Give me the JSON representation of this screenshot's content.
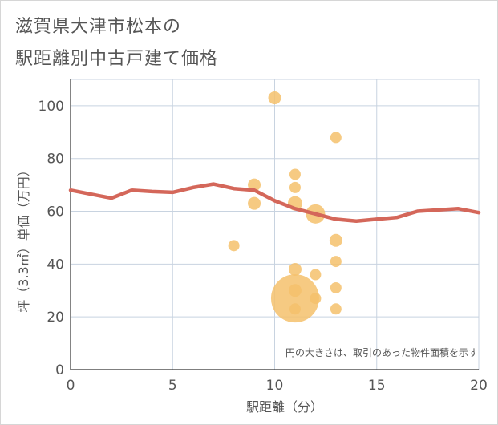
{
  "title_lines": [
    "滋賀県大津市松本の",
    "駅距離別中古戸建て価格"
  ],
  "chart_data": {
    "type": "scatter",
    "xlabel": "駅距離（分）",
    "ylabel": "坪（3.3㎡）単価（万円）",
    "xlim": [
      0,
      20
    ],
    "ylim": [
      0,
      110
    ],
    "x_ticks": [
      0,
      5,
      10,
      15,
      20
    ],
    "y_ticks": [
      0,
      20,
      40,
      60,
      80,
      100
    ],
    "note": "円の大きさは、取引のあった物件面積を示す",
    "colors": {
      "points": "#f5c16c",
      "line": "#d4675a",
      "grid": "#c8d3e0"
    },
    "points": [
      {
        "x": 8,
        "y": 47,
        "r": 7
      },
      {
        "x": 9,
        "y": 70,
        "r": 8
      },
      {
        "x": 9,
        "y": 63,
        "r": 8
      },
      {
        "x": 10,
        "y": 103,
        "r": 8
      },
      {
        "x": 11,
        "y": 74,
        "r": 7
      },
      {
        "x": 11,
        "y": 69,
        "r": 7
      },
      {
        "x": 11,
        "y": 63,
        "r": 9
      },
      {
        "x": 11,
        "y": 38,
        "r": 8
      },
      {
        "x": 11,
        "y": 30,
        "r": 8
      },
      {
        "x": 11,
        "y": 27,
        "r": 30
      },
      {
        "x": 11,
        "y": 23,
        "r": 7
      },
      {
        "x": 12,
        "y": 59,
        "r": 12
      },
      {
        "x": 12,
        "y": 36,
        "r": 7
      },
      {
        "x": 12,
        "y": 27,
        "r": 7
      },
      {
        "x": 13,
        "y": 88,
        "r": 7
      },
      {
        "x": 13,
        "y": 49,
        "r": 8
      },
      {
        "x": 13,
        "y": 41,
        "r": 7
      },
      {
        "x": 13,
        "y": 31,
        "r": 7
      },
      {
        "x": 13,
        "y": 23,
        "r": 7
      }
    ],
    "line": {
      "x": [
        0,
        1,
        2,
        3,
        4,
        5,
        6,
        7,
        8,
        9,
        10,
        11,
        12,
        13,
        14,
        15,
        16,
        17,
        18,
        19,
        20
      ],
      "y": [
        68,
        66.5,
        65,
        68,
        67.5,
        67.2,
        69,
        70.3,
        68.6,
        68,
        64,
        61,
        59,
        57,
        56.3,
        57,
        57.7,
        60,
        60.5,
        61,
        59.5
      ]
    }
  }
}
